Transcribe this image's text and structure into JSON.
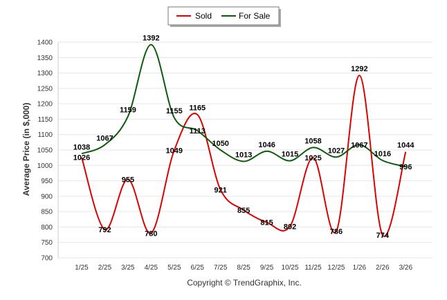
{
  "chart_data": {
    "type": "line",
    "title": "",
    "xlabel": "",
    "ylabel": "Average Price (in $,000)",
    "ylim": [
      700,
      1400
    ],
    "yticks": [
      700,
      750,
      800,
      850,
      900,
      950,
      1000,
      1050,
      1100,
      1150,
      1200,
      1250,
      1300,
      1350,
      1400
    ],
    "categories": [
      "1/25",
      "2/25",
      "3/25",
      "4/25",
      "5/25",
      "6/25",
      "7/25",
      "8/25",
      "9/25",
      "10/25",
      "11/25",
      "12/25",
      "1/26",
      "2/26",
      "3/26"
    ],
    "legend_position": "top-center",
    "grid": true,
    "series": [
      {
        "name": "Sold",
        "color": "#dd0000",
        "values": [
          1026,
          792,
          955,
          780,
          1049,
          1165,
          921,
          855,
          815,
          802,
          1025,
          786,
          1292,
          774,
          1044
        ]
      },
      {
        "name": "For Sale",
        "color": "#0a5c0a",
        "values": [
          1038,
          1067,
          1159,
          1392,
          1155,
          1113,
          1050,
          1013,
          1046,
          1015,
          1058,
          1027,
          1067,
          1016,
          996
        ]
      }
    ]
  },
  "footer": {
    "copyright": "Copyright © TrendGraphix, Inc."
  }
}
